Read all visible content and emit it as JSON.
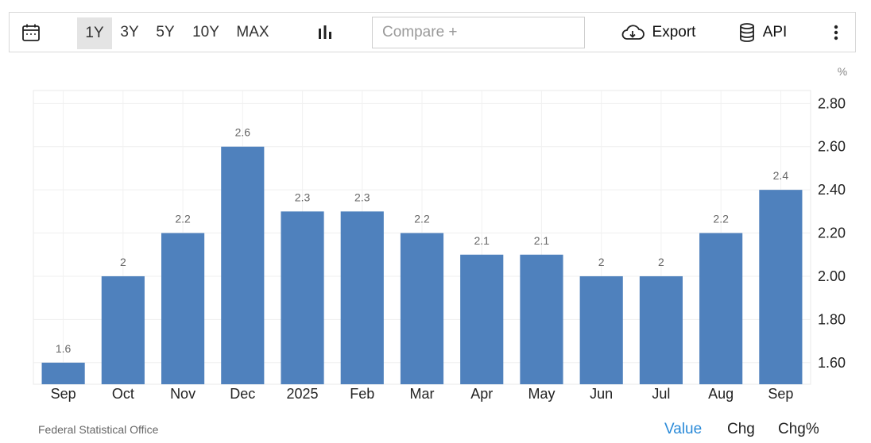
{
  "toolbar": {
    "calendar_icon": "calendar-icon",
    "ranges": [
      "1Y",
      "3Y",
      "5Y",
      "10Y",
      "MAX"
    ],
    "active_range": "1Y",
    "chart_type_icon": "bar-chart-icon",
    "compare_placeholder": "Compare +",
    "export_label": "Export",
    "export_icon": "cloud-download-icon",
    "api_label": "API",
    "api_icon": "database-icon",
    "more_icon": "vertical-dots-icon"
  },
  "chart_data": {
    "type": "bar",
    "categories": [
      "Sep",
      "Oct",
      "Nov",
      "Dec",
      "2025",
      "Feb",
      "Mar",
      "Apr",
      "May",
      "Jun",
      "Jul",
      "Aug",
      "Sep"
    ],
    "values": [
      1.6,
      2.0,
      2.2,
      2.6,
      2.3,
      2.3,
      2.2,
      2.1,
      2.1,
      2.0,
      2.0,
      2.2,
      2.4
    ],
    "data_labels": [
      "1.6",
      "2",
      "2.2",
      "2.6",
      "2.3",
      "2.3",
      "2.2",
      "2.1",
      "2.1",
      "2",
      "2",
      "2.2",
      "2.4"
    ],
    "y_ticks": [
      "1.60",
      "1.80",
      "2.00",
      "2.20",
      "2.40",
      "2.60",
      "2.80"
    ],
    "ylim": [
      1.5,
      2.86
    ],
    "unit": "%",
    "grid": true,
    "bar_color": "#4f81bd",
    "axis_side": "right"
  },
  "footer": {
    "source": "Federal Statistical Office",
    "tabs": [
      "Value",
      "Chg",
      "Chg%"
    ],
    "active_tab": "Value",
    "accent_color": "#2a8ad8"
  }
}
